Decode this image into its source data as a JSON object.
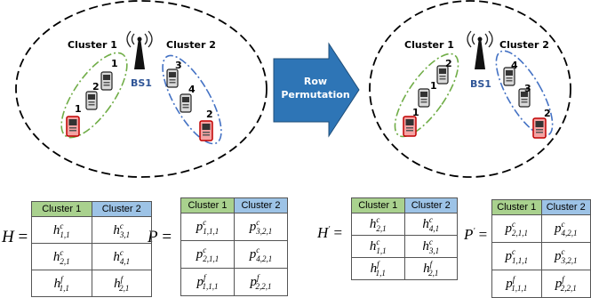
{
  "left_scene": {
    "cluster1_label": "Cluster 1",
    "cluster2_label": "Cluster 2",
    "bs_label": "BS1",
    "cluster1_devices": [
      "1",
      "1",
      "2"
    ],
    "cluster2_devices": [
      "3",
      "4",
      "2"
    ]
  },
  "right_scene": {
    "cluster1_label": "Cluster 1",
    "cluster2_label": "Cluster 2",
    "bs_label": "BS1",
    "cluster1_devices": [
      "2",
      "1",
      "1"
    ],
    "cluster2_devices": [
      "4",
      "3",
      "2"
    ]
  },
  "arrow": {
    "line1": "Row",
    "line2": "Permutation"
  },
  "colors": {
    "cluster1_header": "#a9d18e",
    "cluster2_header": "#9dc3e6",
    "arrow": "#2e75b6",
    "cluster1_ellipse": "#70ad47",
    "cluster2_ellipse": "#4472c4"
  },
  "tables": [
    {
      "symbol": "H",
      "prime": "",
      "headers": [
        "Cluster 1",
        "Cluster 2"
      ],
      "rows": [
        [
          {
            "b": "h",
            "sup": "c",
            "sub": "1,1"
          },
          {
            "b": "h",
            "sup": "c",
            "sub": "3,1"
          }
        ],
        [
          {
            "b": "h",
            "sup": "c",
            "sub": "2,1"
          },
          {
            "b": "h",
            "sup": "c",
            "sub": "4,1"
          }
        ],
        [
          {
            "b": "h",
            "sup": "f",
            "sub": "1,1"
          },
          {
            "b": "h",
            "sup": "f",
            "sub": "2,1"
          }
        ]
      ]
    },
    {
      "symbol": "P",
      "prime": "",
      "headers": [
        "Cluster 1",
        "Cluster 2"
      ],
      "rows": [
        [
          {
            "b": "p",
            "sup": "c",
            "sub": "1,1,1"
          },
          {
            "b": "p",
            "sup": "c",
            "sub": "3,2,1"
          }
        ],
        [
          {
            "b": "p",
            "sup": "c",
            "sub": "2,1,1"
          },
          {
            "b": "p",
            "sup": "c",
            "sub": "4,2,1"
          }
        ],
        [
          {
            "b": "p",
            "sup": "f",
            "sub": "1,1,1"
          },
          {
            "b": "p",
            "sup": "f",
            "sub": "2,2,1"
          }
        ]
      ]
    },
    {
      "symbol": "H",
      "prime": "'",
      "headers": [
        "Cluster 1",
        "Cluster 2"
      ],
      "rows": [
        [
          {
            "b": "h",
            "sup": "c",
            "sub": "2,1"
          },
          {
            "b": "h",
            "sup": "c",
            "sub": "4,1"
          }
        ],
        [
          {
            "b": "h",
            "sup": "c",
            "sub": "1,1"
          },
          {
            "b": "h",
            "sup": "c",
            "sub": "3,1"
          }
        ],
        [
          {
            "b": "h",
            "sup": "f",
            "sub": "1,1"
          },
          {
            "b": "h",
            "sup": "f",
            "sub": "2,1"
          }
        ]
      ]
    },
    {
      "symbol": "P",
      "prime": "'",
      "headers": [
        "Cluster 1",
        "Cluster 2"
      ],
      "rows": [
        [
          {
            "b": "p",
            "sup": "c",
            "sub": "2,1,1"
          },
          {
            "b": "p",
            "sup": "c",
            "sub": "4,2,1"
          }
        ],
        [
          {
            "b": "p",
            "sup": "c",
            "sub": "1,1,1"
          },
          {
            "b": "p",
            "sup": "c",
            "sub": "3,2,1"
          }
        ],
        [
          {
            "b": "p",
            "sup": "f",
            "sub": "1,1,1"
          },
          {
            "b": "p",
            "sup": "f",
            "sub": "2,2,1"
          }
        ]
      ]
    }
  ]
}
